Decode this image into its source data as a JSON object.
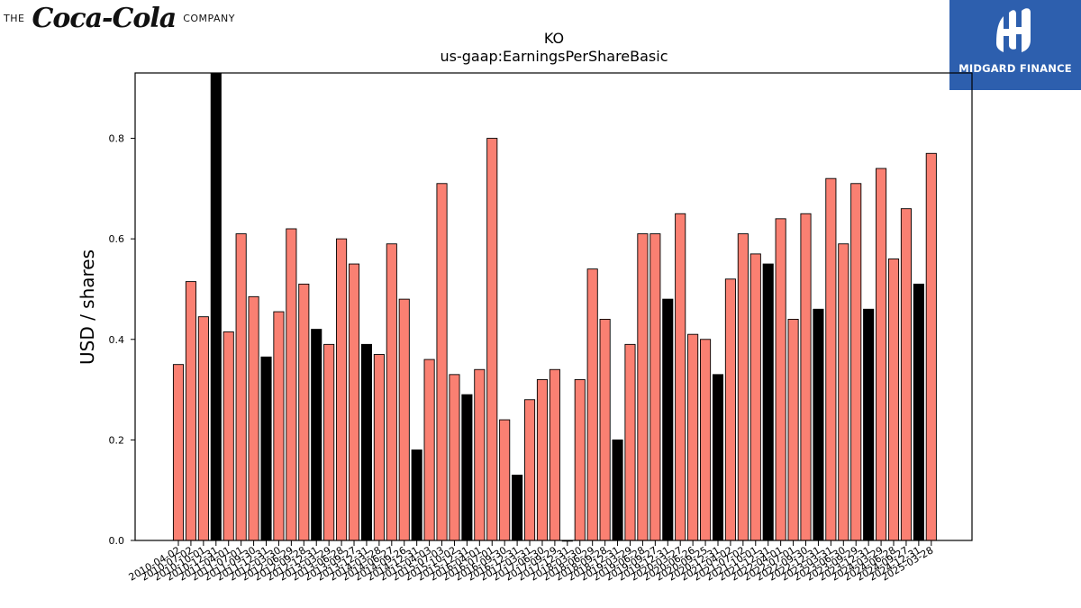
{
  "brand": {
    "prefix": "THE",
    "wordmark": "Coca-Cola",
    "suffix": "COMPANY"
  },
  "partner_logo": {
    "text": "MIDGARD FINANCE",
    "bg": "#2d5fae"
  },
  "colors": {
    "bar": "#fa8072",
    "highlight": "#000000",
    "edge": "#000000"
  },
  "chart_data": {
    "type": "bar",
    "title": "KO",
    "subtitle": "us-gaap:EarningsPerShareBasic",
    "ylabel": "USD / shares",
    "xlabel": "",
    "ylim": [
      0,
      0.93
    ],
    "yticks": [
      0.0,
      0.2,
      0.4,
      0.6,
      0.8
    ],
    "ytick_labels": [
      "0.0",
      "0.2",
      "0.4",
      "0.6",
      "0.8"
    ],
    "grid": false,
    "legend": "none",
    "categories": [
      "2010-04-02",
      "2010-07-02",
      "2010-10-01",
      "2010-12-31",
      "2011-04-01",
      "2011-07-01",
      "2011-09-30",
      "2011-12-31",
      "2012-03-30",
      "2012-06-29",
      "2012-09-28",
      "2012-12-31",
      "2013-03-29",
      "2013-06-28",
      "2013-09-27",
      "2013-12-31",
      "2014-03-28",
      "2014-06-27",
      "2014-09-26",
      "2014-12-31",
      "2015-04-03",
      "2015-07-03",
      "2015-10-02",
      "2015-12-31",
      "2016-04-01",
      "2016-07-01",
      "2016-09-30",
      "2016-12-31",
      "2017-03-31",
      "2017-06-30",
      "2017-09-29",
      "2017-12-31",
      "2018-03-30",
      "2018-06-29",
      "2018-09-28",
      "2018-12-31",
      "2019-03-29",
      "2019-06-28",
      "2019-09-27",
      "2019-12-31",
      "2020-03-27",
      "2020-06-26",
      "2020-09-25",
      "2020-12-31",
      "2021-04-02",
      "2021-07-02",
      "2021-10-01",
      "2021-12-31",
      "2022-04-01",
      "2022-07-01",
      "2022-09-30",
      "2022-12-31",
      "2023-03-31",
      "2023-06-30",
      "2023-09-29",
      "2023-12-31",
      "2024-03-29",
      "2024-06-28",
      "2024-09-27",
      "2024-12-31",
      "2025-03-28"
    ],
    "x_labels_shown": [
      "2010-04-02",
      "2010-07-02",
      "2010-10-01",
      "2010-12-31",
      "2011-04-01",
      "2011-07-01",
      "2011-09-30",
      "2011-12-31",
      "2012-03-30",
      "2012-06-29",
      "2012-09-28",
      "2012-12-31",
      "2013-03-29",
      "2013-06-28",
      "2013-09-27",
      "2013-12-31",
      "2014-03-28",
      "2014-06-27",
      "2014-09-26",
      "2014-12-31",
      "2015-04-03",
      "2015-07-03",
      "2015-10-02",
      "2015-12-31",
      "2016-04-01",
      "2016-07-01",
      "2016-09-30",
      "2016-12-31",
      "2017-03-31",
      "2017-06-30",
      "2017-09-29",
      "2017-12-31",
      "2018-03-30",
      "2018-06-29",
      "2018-09-28",
      "2018-12-31",
      "2019-03-29",
      "2019-06-28",
      "2019-09-27",
      "2019-12-31",
      "2020-03-27",
      "2020-06-26",
      "2020-09-25",
      "2020-12-31",
      "2021-04-02",
      "2021-07-02",
      "2021-10-01",
      "2021-12-31",
      "2022-04-01",
      "2022-07-01",
      "2022-09-30",
      "2022-12-31",
      "2023-03-31",
      "2023-06-30",
      "2023-09-29",
      "2023-12-31",
      "2024-03-29",
      "2024-06-28",
      "2024-09-27",
      "2024-12-31",
      "2025-03-28"
    ],
    "values": [
      0.35,
      0.515,
      0.445,
      0.93,
      0.415,
      0.61,
      0.485,
      0.365,
      0.455,
      0.62,
      0.51,
      0.42,
      0.39,
      0.6,
      0.55,
      0.39,
      0.37,
      0.59,
      0.48,
      0.18,
      0.36,
      0.71,
      0.33,
      0.29,
      0.34,
      0.8,
      0.24,
      0.13,
      0.28,
      0.32,
      0.34,
      0.0,
      0.32,
      0.54,
      0.44,
      0.2,
      0.39,
      0.61,
      0.61,
      0.48,
      0.65,
      0.41,
      0.4,
      0.33,
      0.52,
      0.61,
      0.57,
      0.55,
      0.64,
      0.44,
      0.65,
      0.46,
      0.72,
      0.59,
      0.71,
      0.46,
      0.74,
      0.56,
      0.66,
      0.51,
      0.77
    ],
    "highlighted": [
      "2010-12-31",
      "2011-12-31",
      "2012-12-31",
      "2013-12-31",
      "2014-12-31",
      "2015-12-31",
      "2016-12-31",
      "2017-12-31",
      "2018-12-31",
      "2019-12-31",
      "2020-12-31",
      "2021-12-31",
      "2022-12-31",
      "2023-12-31",
      "2024-12-31"
    ]
  }
}
